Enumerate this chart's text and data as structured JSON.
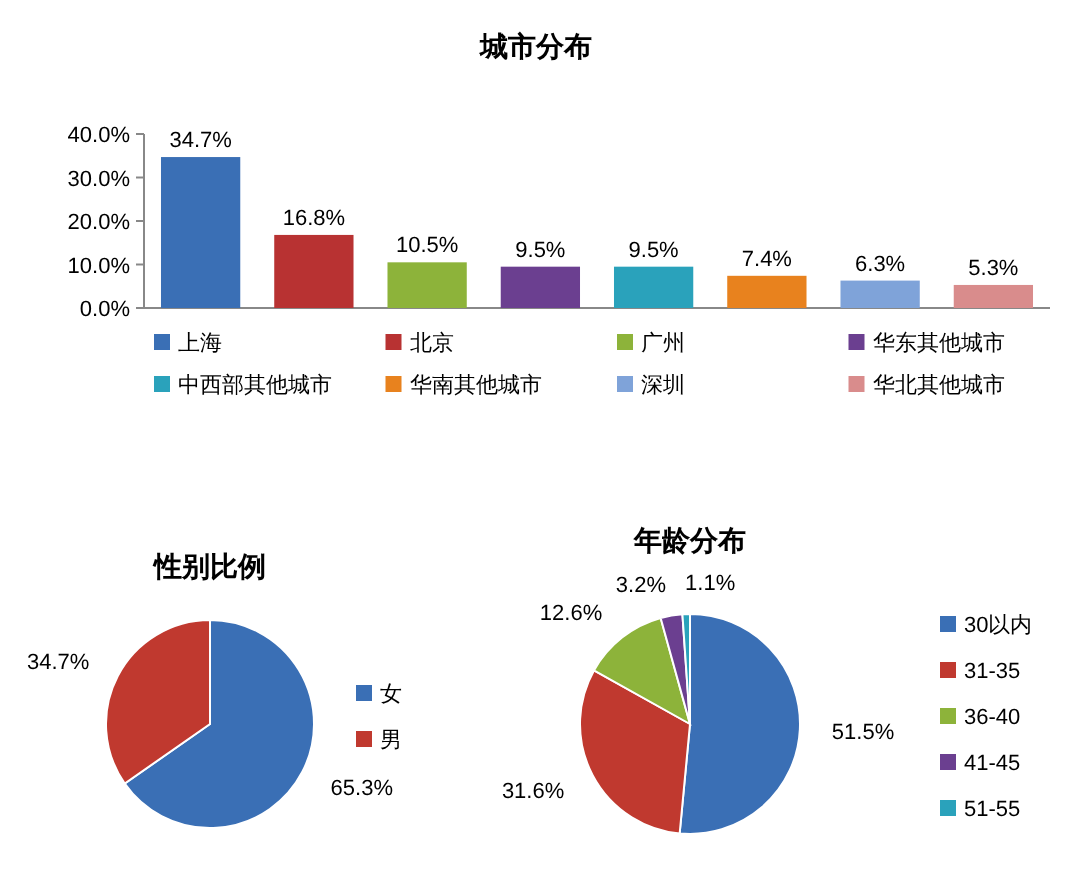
{
  "chart_data": [
    {
      "type": "bar",
      "title": "城市分布",
      "categories": [
        null,
        null,
        null,
        null,
        null,
        null,
        null,
        null
      ],
      "series": [
        {
          "name": "上海",
          "color": "#3a6fb5",
          "values": [
            34.7,
            null,
            null,
            null,
            null,
            null,
            null,
            null
          ],
          "value_labels": [
            "34.7%",
            null,
            null,
            null,
            null,
            null,
            null,
            null
          ]
        },
        {
          "name": "北京",
          "color": "#b83232",
          "values": [
            null,
            16.8,
            null,
            null,
            null,
            null,
            null,
            null
          ],
          "value_labels": [
            null,
            "16.8%",
            null,
            null,
            null,
            null,
            null,
            null
          ]
        },
        {
          "name": "广州",
          "color": "#8db33a",
          "values": [
            null,
            null,
            10.5,
            null,
            null,
            null,
            null,
            null
          ],
          "value_labels": [
            null,
            null,
            "10.5%",
            null,
            null,
            null,
            null,
            null
          ]
        },
        {
          "name": "华东其他城市",
          "color": "#6b3f90",
          "values": [
            null,
            null,
            null,
            9.5,
            null,
            null,
            null,
            null
          ],
          "value_labels": [
            null,
            null,
            null,
            "9.5%",
            null,
            null,
            null,
            null
          ]
        },
        {
          "name": "中西部其他城市",
          "color": "#2aa2bb",
          "values": [
            null,
            null,
            null,
            null,
            9.5,
            null,
            null,
            null
          ],
          "value_labels": [
            null,
            null,
            null,
            null,
            "9.5%",
            null,
            null,
            null
          ]
        },
        {
          "name": "华南其他城市",
          "color": "#e8821e",
          "values": [
            null,
            null,
            null,
            null,
            null,
            7.4,
            null,
            null
          ],
          "value_labels": [
            null,
            null,
            null,
            null,
            null,
            "7.4%",
            null,
            null
          ]
        },
        {
          "name": "深圳",
          "color": "#7fa3d9",
          "values": [
            null,
            null,
            null,
            null,
            null,
            null,
            6.3,
            null
          ],
          "value_labels": [
            null,
            null,
            null,
            null,
            null,
            null,
            "6.3%",
            null
          ]
        },
        {
          "name": "华北其他城市",
          "color": "#d98c8c",
          "values": [
            null,
            null,
            null,
            null,
            null,
            null,
            null,
            5.3
          ],
          "value_labels": [
            null,
            null,
            null,
            null,
            null,
            null,
            null,
            "5.3%"
          ]
        }
      ],
      "ylim": [
        0,
        40
      ],
      "yticks": [
        {
          "value": 0,
          "label": "0.0%"
        },
        {
          "value": 10,
          "label": "10.0%"
        },
        {
          "value": 20,
          "label": "20.0%"
        },
        {
          "value": 30,
          "label": "30.0%"
        },
        {
          "value": 40,
          "label": "40.0%"
        }
      ],
      "legend": "bottom"
    },
    {
      "type": "pie",
      "title": "性别比例",
      "categories": [
        "女",
        "男"
      ],
      "values": [
        65.3,
        34.7
      ],
      "value_labels": [
        "65.3%",
        "34.7%"
      ],
      "colors": [
        "#3a6fb5",
        "#c0392f"
      ],
      "legend": "right"
    },
    {
      "type": "pie",
      "title": "年龄分布",
      "categories": [
        "30以内",
        "31-35",
        "36-40",
        "41-45",
        "51-55"
      ],
      "values": [
        51.5,
        31.6,
        12.6,
        3.2,
        1.1
      ],
      "value_labels": [
        "51.5%",
        "31.6%",
        "12.6%",
        "3.2%",
        "1.1%"
      ],
      "colors": [
        "#3a6fb5",
        "#c0392f",
        "#8db33a",
        "#6b3f90",
        "#2aa2bb"
      ],
      "legend": "right"
    }
  ]
}
